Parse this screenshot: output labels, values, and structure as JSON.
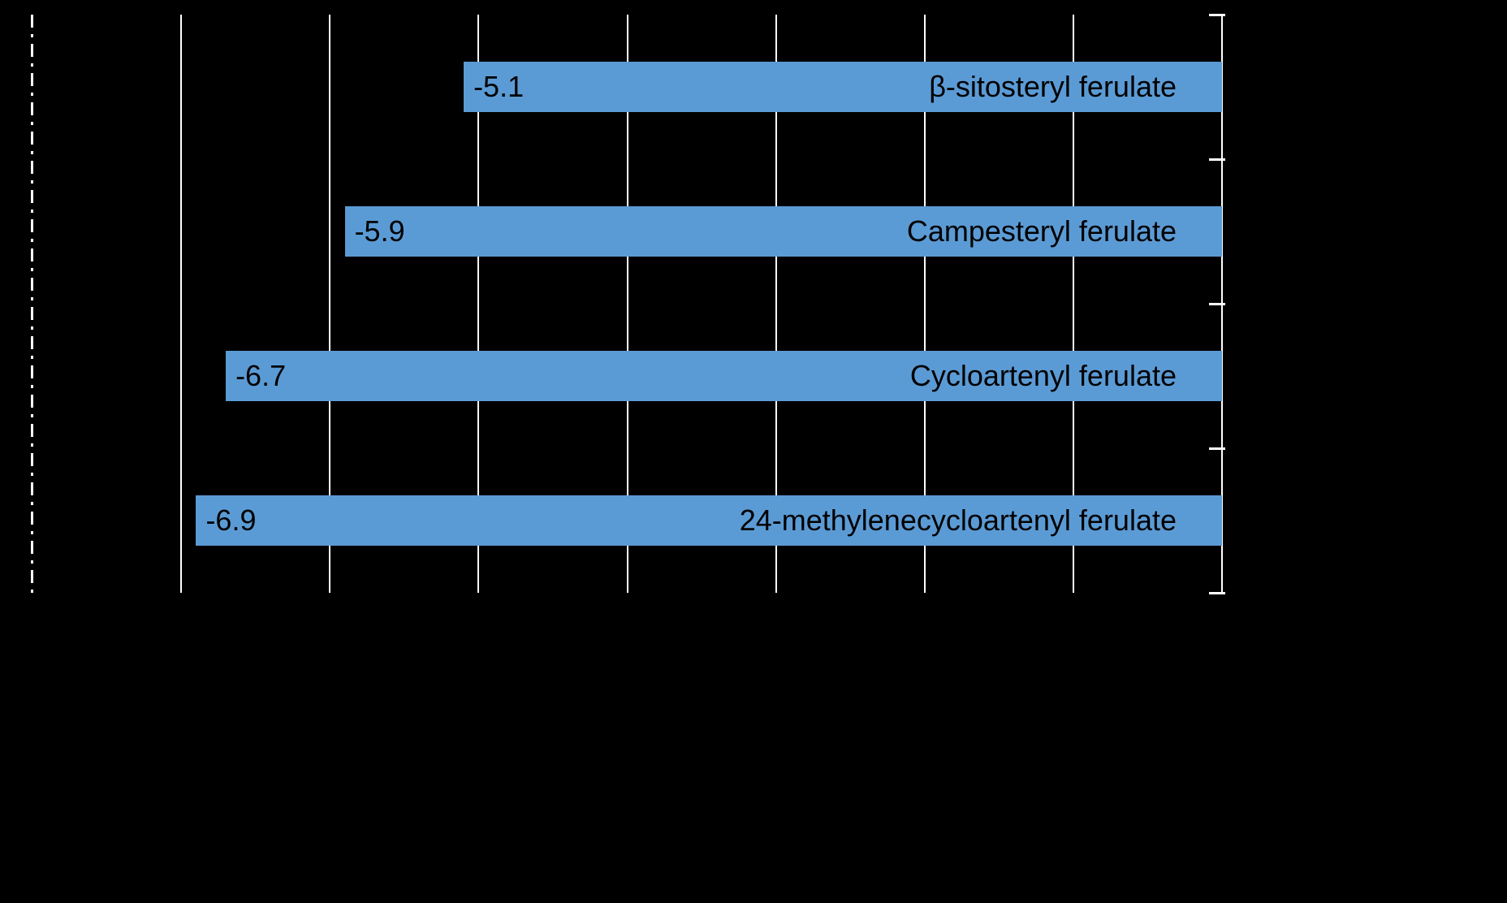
{
  "chart_data": {
    "type": "bar",
    "orientation": "horizontal",
    "title": "",
    "categories": [
      "β-sitosteryl ferulate",
      "Campesteryl ferulate",
      "Cycloartenyl ferulate",
      "24-methylenecycloartenyl ferulate"
    ],
    "values": [
      -5.1,
      -5.9,
      -6.7,
      -6.9
    ],
    "value_labels": [
      "-5.1",
      "-5.9",
      "-6.7",
      "-6.9"
    ],
    "xlim": [
      -8,
      0
    ],
    "gridline_values": [
      -7,
      -6,
      -5,
      -4,
      -3,
      -2,
      -1,
      0
    ],
    "grid": true,
    "legend": false,
    "bar_color": "#5b9bd5",
    "label_color": "#000000",
    "gridline_color": "#ffffff",
    "background_color": "#000000"
  }
}
